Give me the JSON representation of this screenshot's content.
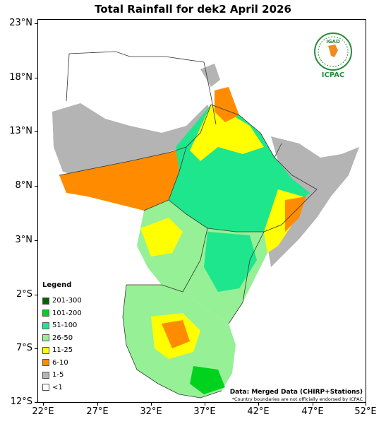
{
  "title": "Total Rainfall for dek2 April 2026",
  "latitude_ticks": [
    "23°N",
    "18°N",
    "13°N",
    "8°N",
    "3°N",
    "2°S",
    "7°S",
    "12°S"
  ],
  "longitude_ticks": [
    "22°E",
    "27°E",
    "32°E",
    "37°E",
    "42°E",
    "47°E",
    "52°E"
  ],
  "legend": {
    "title": "Legend",
    "items": [
      {
        "label": "201-300",
        "color": "#006400"
      },
      {
        "label": "101-200",
        "color": "#00d21e"
      },
      {
        "label": "51-100",
        "color": "#1ee68c"
      },
      {
        "label": "26-50",
        "color": "#96f096"
      },
      {
        "label": "11-25",
        "color": "#ffff00"
      },
      {
        "label": "6-10",
        "color": "#ff8c00"
      },
      {
        "label": "1-5",
        "color": "#b4b4b4"
      },
      {
        "label": "<1",
        "color": "#ffffff"
      }
    ]
  },
  "credit": {
    "main": "Data: Merged Data (CHIRP+Stations)",
    "note": "*Country boundaries are not officially endorsed by ICPAC"
  },
  "logo": {
    "name": "IGAD",
    "text": "ICPAC",
    "color": "#2a8c3a"
  }
}
